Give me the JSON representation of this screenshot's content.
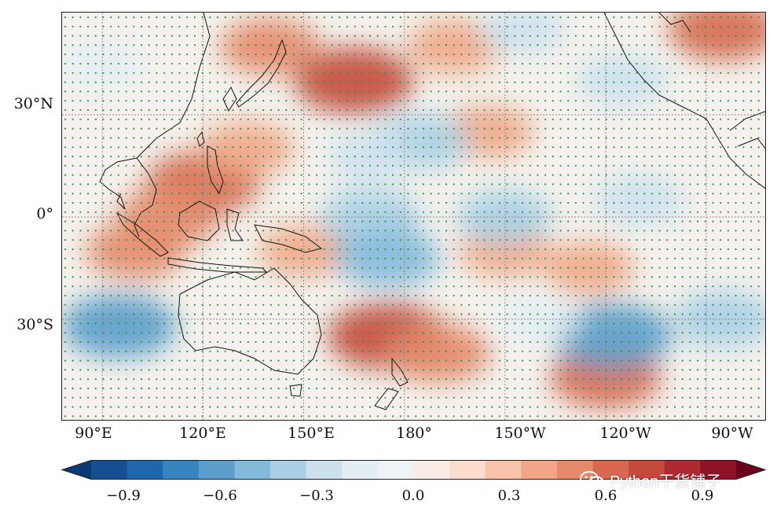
{
  "figure": {
    "title": "",
    "lat_labels": [
      "30°N",
      "0°",
      "30°S"
    ],
    "lon_labels": [
      "90°E",
      "120°E",
      "150°E",
      "180°",
      "150°W",
      "120°W",
      "90°W"
    ]
  },
  "colorbar": {
    "tick_labels": [
      "−0.9",
      "−0.6",
      "−0.3",
      "0.0",
      "0.3",
      "0.6",
      "0.9"
    ],
    "range": [
      -1.0,
      1.0
    ],
    "colors": [
      "#0a3a75",
      "#164f8f",
      "#2166ac",
      "#3a84bd",
      "#5b9dcb",
      "#83b9da",
      "#aacfe6",
      "#cce0ee",
      "#e3edf4",
      "#eef3f6",
      "#f9ece6",
      "#fbdccf",
      "#f8c3a9",
      "#f1a787",
      "#e68a6c",
      "#d6694f",
      "#c44a3c",
      "#ae2a30",
      "#8f1327",
      "#6b001e"
    ]
  },
  "chart_data": {
    "type": "heatmap",
    "title": "",
    "xlabel": "",
    "ylabel": "",
    "x_range_deg_east": [
      78,
      288
    ],
    "y_range_deg_north": [
      -60,
      60
    ],
    "value_range": [
      -1.0,
      1.0
    ],
    "x_tick_labels": [
      "90°E",
      "120°E",
      "150°E",
      "180°",
      "150°W",
      "120°W",
      "90°W"
    ],
    "y_tick_labels": [
      "30°N",
      "0°",
      "30°S"
    ],
    "grid": true,
    "stippling": true,
    "anomalies": [
      {
        "lon": 120,
        "lat": 10,
        "value": 0.55
      },
      {
        "lon": 110,
        "lat": 0,
        "value": 0.45
      },
      {
        "lon": 100,
        "lat": -10,
        "value": 0.4
      },
      {
        "lon": 133,
        "lat": 20,
        "value": 0.35
      },
      {
        "lon": 165,
        "lat": 40,
        "value": 0.6
      },
      {
        "lon": 140,
        "lat": 50,
        "value": 0.4
      },
      {
        "lon": 195,
        "lat": 50,
        "value": 0.35
      },
      {
        "lon": 275,
        "lat": 55,
        "value": 0.5
      },
      {
        "lon": 175,
        "lat": -35,
        "value": 0.6
      },
      {
        "lon": 190,
        "lat": -40,
        "value": 0.45
      },
      {
        "lon": 240,
        "lat": -47,
        "value": 0.5
      },
      {
        "lon": 150,
        "lat": -10,
        "value": 0.3
      },
      {
        "lon": 210,
        "lat": -10,
        "value": 0.3
      },
      {
        "lon": 235,
        "lat": -15,
        "value": 0.3
      },
      {
        "lon": 205,
        "lat": 25,
        "value": 0.3
      },
      {
        "lon": 170,
        "lat": 0,
        "value": -0.4
      },
      {
        "lon": 210,
        "lat": 0,
        "value": -0.35
      },
      {
        "lon": 250,
        "lat": 5,
        "value": -0.3
      },
      {
        "lon": 185,
        "lat": 22,
        "value": -0.35
      },
      {
        "lon": 170,
        "lat": 18,
        "value": -0.25
      },
      {
        "lon": 175,
        "lat": -12,
        "value": -0.45
      },
      {
        "lon": 95,
        "lat": -32,
        "value": -0.55
      },
      {
        "lon": 242,
        "lat": -35,
        "value": -0.6
      },
      {
        "lon": 275,
        "lat": -30,
        "value": -0.4
      },
      {
        "lon": 245,
        "lat": 40,
        "value": -0.3
      },
      {
        "lon": 215,
        "lat": 55,
        "value": -0.25
      },
      {
        "lon": 90,
        "lat": 45,
        "value": -0.2
      },
      {
        "lon": 220,
        "lat": -30,
        "value": -0.2
      }
    ]
  },
  "watermark": {
    "text": "Python干货铺子",
    "icon": "wechat-icon"
  }
}
